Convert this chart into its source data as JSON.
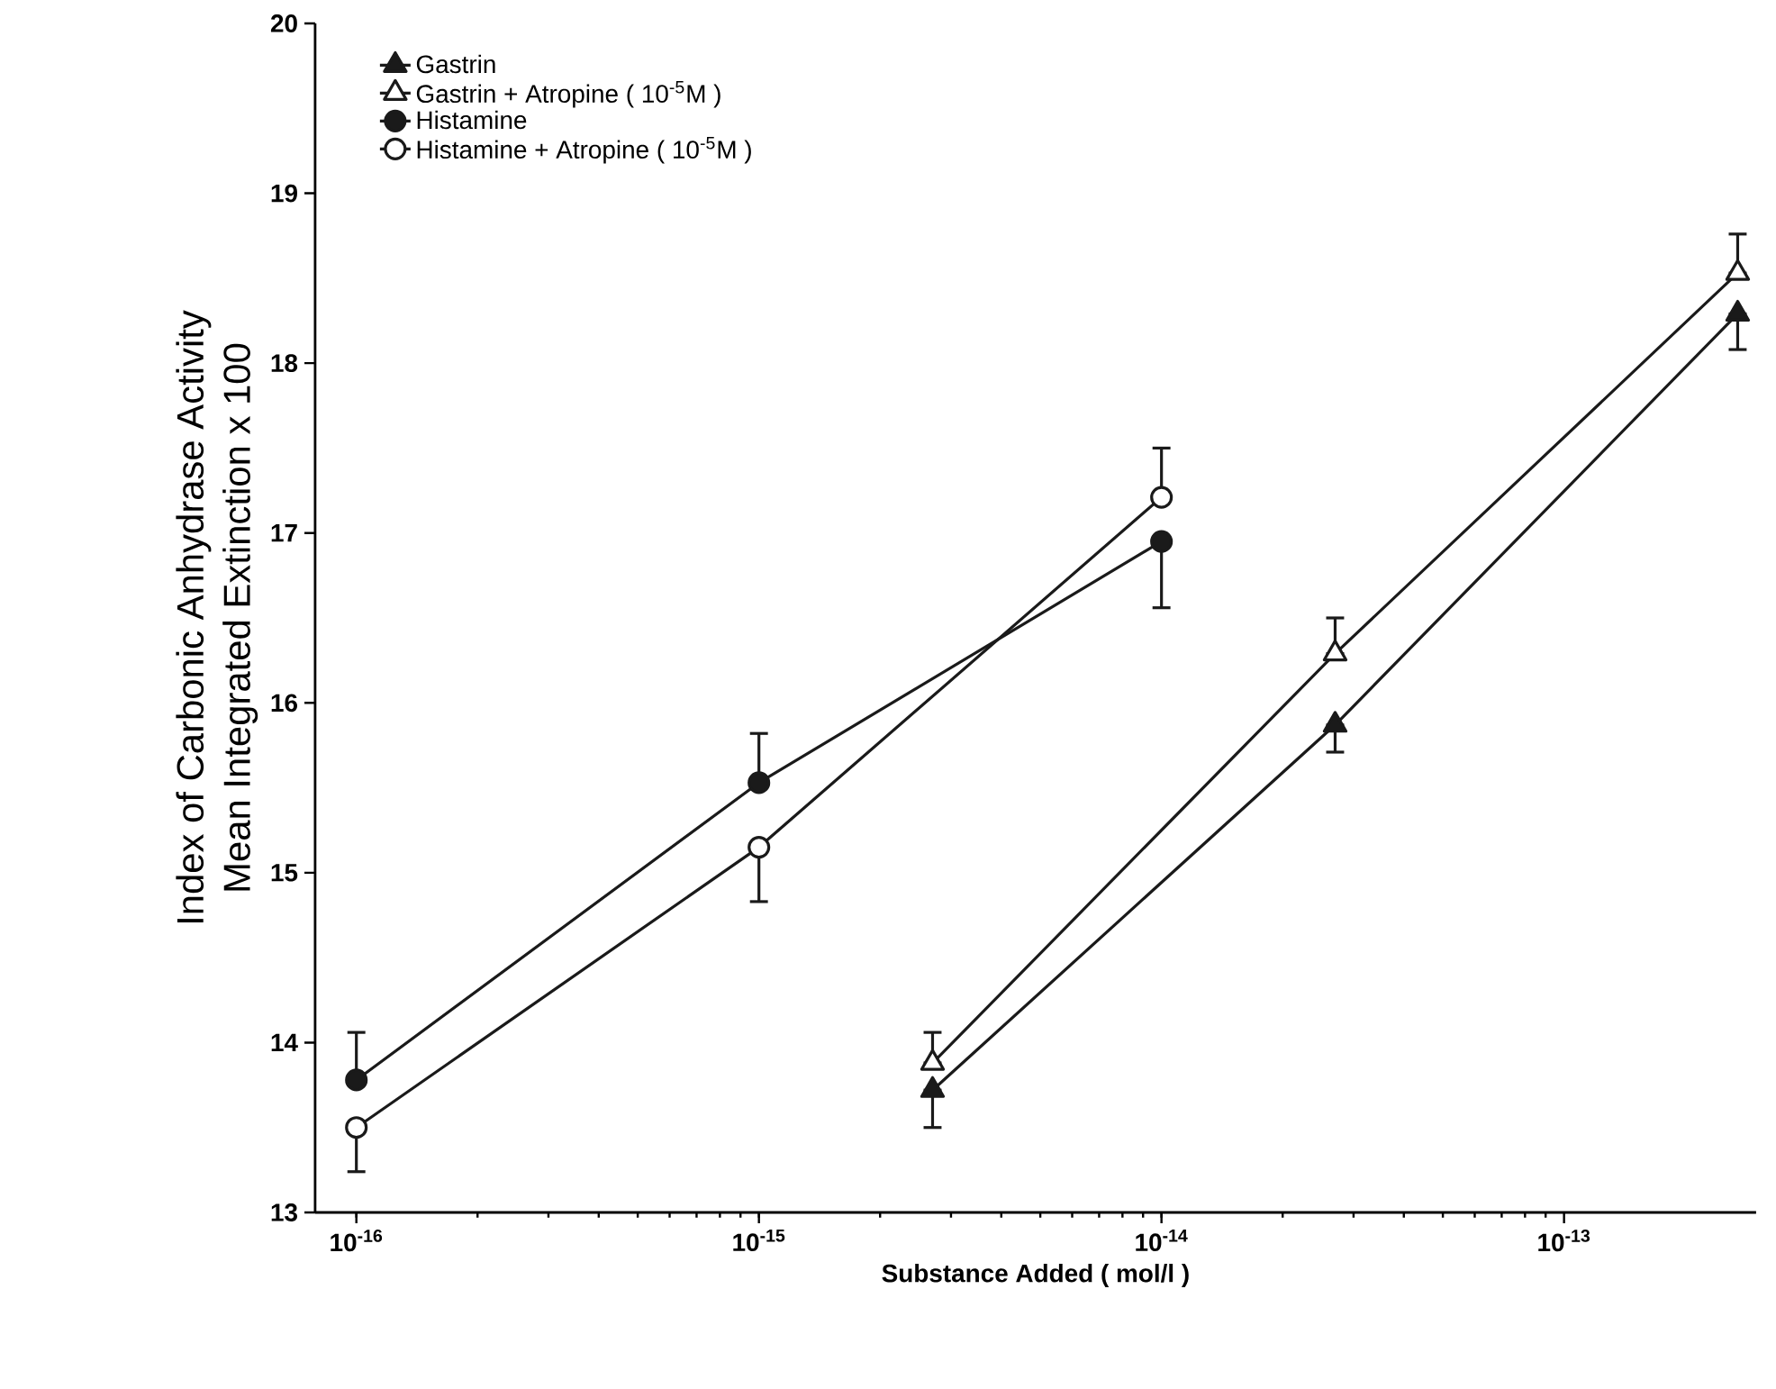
{
  "chart_data": {
    "type": "line",
    "xlabel": "Substance Added ( mol/l )",
    "ylabel": [
      "Index of Carbonic Anhydrase Activity",
      "Mean Integrated Extinction x 100"
    ],
    "log": "x",
    "xlim": [
      7.9e-17,
      3e-13
    ],
    "xticks": [
      {
        "value": 1e-16,
        "label": "10$^{-16}$"
      },
      {
        "value": 1e-15,
        "label": "10$^{-15}$"
      },
      {
        "value": 1e-14,
        "label": "10$^{-14}$"
      },
      {
        "value": 1e-13,
        "label": "10$^{-13}$"
      }
    ],
    "ylim": [
      13,
      20
    ],
    "yticks": [
      13,
      14,
      15,
      16,
      17,
      18,
      19,
      20
    ],
    "legend": "top left",
    "grid": false,
    "line_style": "solid",
    "series": [
      {
        "name": "Gastrin",
        "color": "#1a1a1a",
        "marker": "triangle",
        "x": [
          2.7e-15,
          2.7e-14,
          2.7e-13
        ],
        "values": [
          13.72,
          15.87,
          18.29
        ],
        "errors": [
          [
            13.5,
            13.72
          ],
          [
            15.71,
            15.87
          ],
          [
            18.08,
            18.29
          ]
        ]
      },
      {
        "name": "Gastrin + Atropine ( 10$^{-5}$M )",
        "color": "#1a1a1a",
        "marker": "triangle",
        "x": [
          2.7e-15,
          2.7e-14,
          2.7e-13
        ],
        "values": [
          13.88,
          16.29,
          18.53
        ],
        "errors": [
          [
            13.88,
            14.06
          ],
          [
            16.29,
            16.5
          ],
          [
            18.53,
            18.76
          ]
        ]
      },
      {
        "name": "Histamine",
        "color": "#1a1a1a",
        "marker": "circle",
        "x": [
          1e-16,
          1e-15,
          1e-14
        ],
        "values": [
          13.78,
          15.53,
          16.95
        ],
        "errors": [
          [
            13.78,
            14.06
          ],
          [
            15.53,
            15.82
          ],
          [
            16.56,
            16.95
          ]
        ]
      },
      {
        "name": "Histamine + Atropine ( 10$^{-5}$M )",
        "color": "#1a1a1a",
        "marker": "circle",
        "x": [
          1e-16,
          1e-15,
          1e-14
        ],
        "values": [
          13.5,
          15.15,
          17.21
        ],
        "errors": [
          [
            13.24,
            13.5
          ],
          [
            14.83,
            15.15
          ],
          [
            17.21,
            17.5
          ]
        ]
      }
    ]
  }
}
